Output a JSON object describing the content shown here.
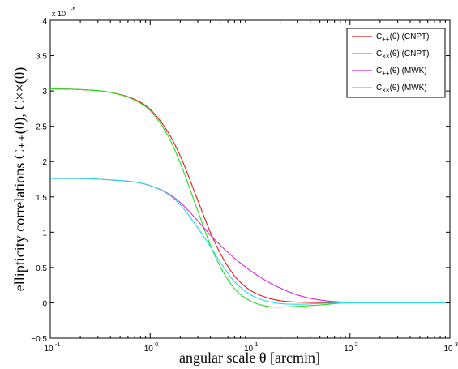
{
  "chart_data": {
    "type": "line",
    "xscale": "log",
    "xlim": [
      0.1,
      1000
    ],
    "ylim": [
      -0.5,
      4
    ],
    "y_multiplier_label": "x 10",
    "y_multiplier_exp": "-5",
    "xlabel": "angular scale θ [arcmin]",
    "ylabel": "ellipticity correlations C₊₊(θ), C××(θ)",
    "legend_position": "top-right",
    "x_ticks": [
      {
        "value": 0.1,
        "base": "10",
        "exp": "-1"
      },
      {
        "value": 1,
        "base": "10",
        "exp": "0"
      },
      {
        "value": 10,
        "base": "10",
        "exp": "1"
      },
      {
        "value": 100,
        "base": "10",
        "exp": "2"
      },
      {
        "value": 1000,
        "base": "10",
        "exp": "3"
      }
    ],
    "y_ticks": [
      {
        "value": -0.5,
        "label": "−0.5"
      },
      {
        "value": 0,
        "label": "0"
      },
      {
        "value": 0.5,
        "label": "0.5"
      },
      {
        "value": 1,
        "label": "1"
      },
      {
        "value": 1.5,
        "label": "1.5"
      },
      {
        "value": 2,
        "label": "2"
      },
      {
        "value": 2.5,
        "label": "2.5"
      },
      {
        "value": 3,
        "label": "3"
      },
      {
        "value": 3.5,
        "label": "3.5"
      },
      {
        "value": 4,
        "label": "4"
      }
    ],
    "x": [
      0.1,
      0.2,
      0.4,
      0.7,
      1,
      1.5,
      2,
      3,
      4,
      5,
      7,
      10,
      15,
      20,
      30,
      50,
      100,
      200,
      500,
      1000
    ],
    "series": [
      {
        "name_main": "C",
        "name_sub": "++",
        "name_rest": "(θ) (CNPT)",
        "color": "#e41a1c",
        "values": [
          3.03,
          3.02,
          2.98,
          2.88,
          2.74,
          2.42,
          2.08,
          1.45,
          1.0,
          0.71,
          0.38,
          0.18,
          0.07,
          0.03,
          0.01,
          0.003,
          0.0,
          0.0,
          0.0,
          0.0
        ]
      },
      {
        "name_main": "C",
        "name_sub": "××",
        "name_rest": "(θ) (CNPT)",
        "color": "#22dd22",
        "values": [
          3.03,
          3.02,
          2.98,
          2.87,
          2.72,
          2.37,
          1.98,
          1.3,
          0.82,
          0.52,
          0.2,
          0.03,
          -0.05,
          -0.06,
          -0.05,
          -0.03,
          0.0,
          0.0,
          0.0,
          0.0
        ]
      },
      {
        "name_main": "C",
        "name_sub": "++",
        "name_rest": "(θ) (MWK)",
        "color": "#dd22dd",
        "values": [
          1.76,
          1.76,
          1.74,
          1.71,
          1.66,
          1.55,
          1.42,
          1.16,
          0.96,
          0.82,
          0.63,
          0.46,
          0.3,
          0.21,
          0.11,
          0.04,
          0.005,
          0.0,
          0.0,
          0.0
        ]
      },
      {
        "name_main": "C",
        "name_sub": "××",
        "name_rest": "(θ) (MWK)",
        "color": "#22dddd",
        "values": [
          1.76,
          1.76,
          1.74,
          1.71,
          1.66,
          1.54,
          1.39,
          1.06,
          0.8,
          0.58,
          0.3,
          0.12,
          0.02,
          -0.01,
          -0.02,
          -0.01,
          0.0,
          0.0,
          0.0,
          0.0
        ]
      }
    ]
  }
}
